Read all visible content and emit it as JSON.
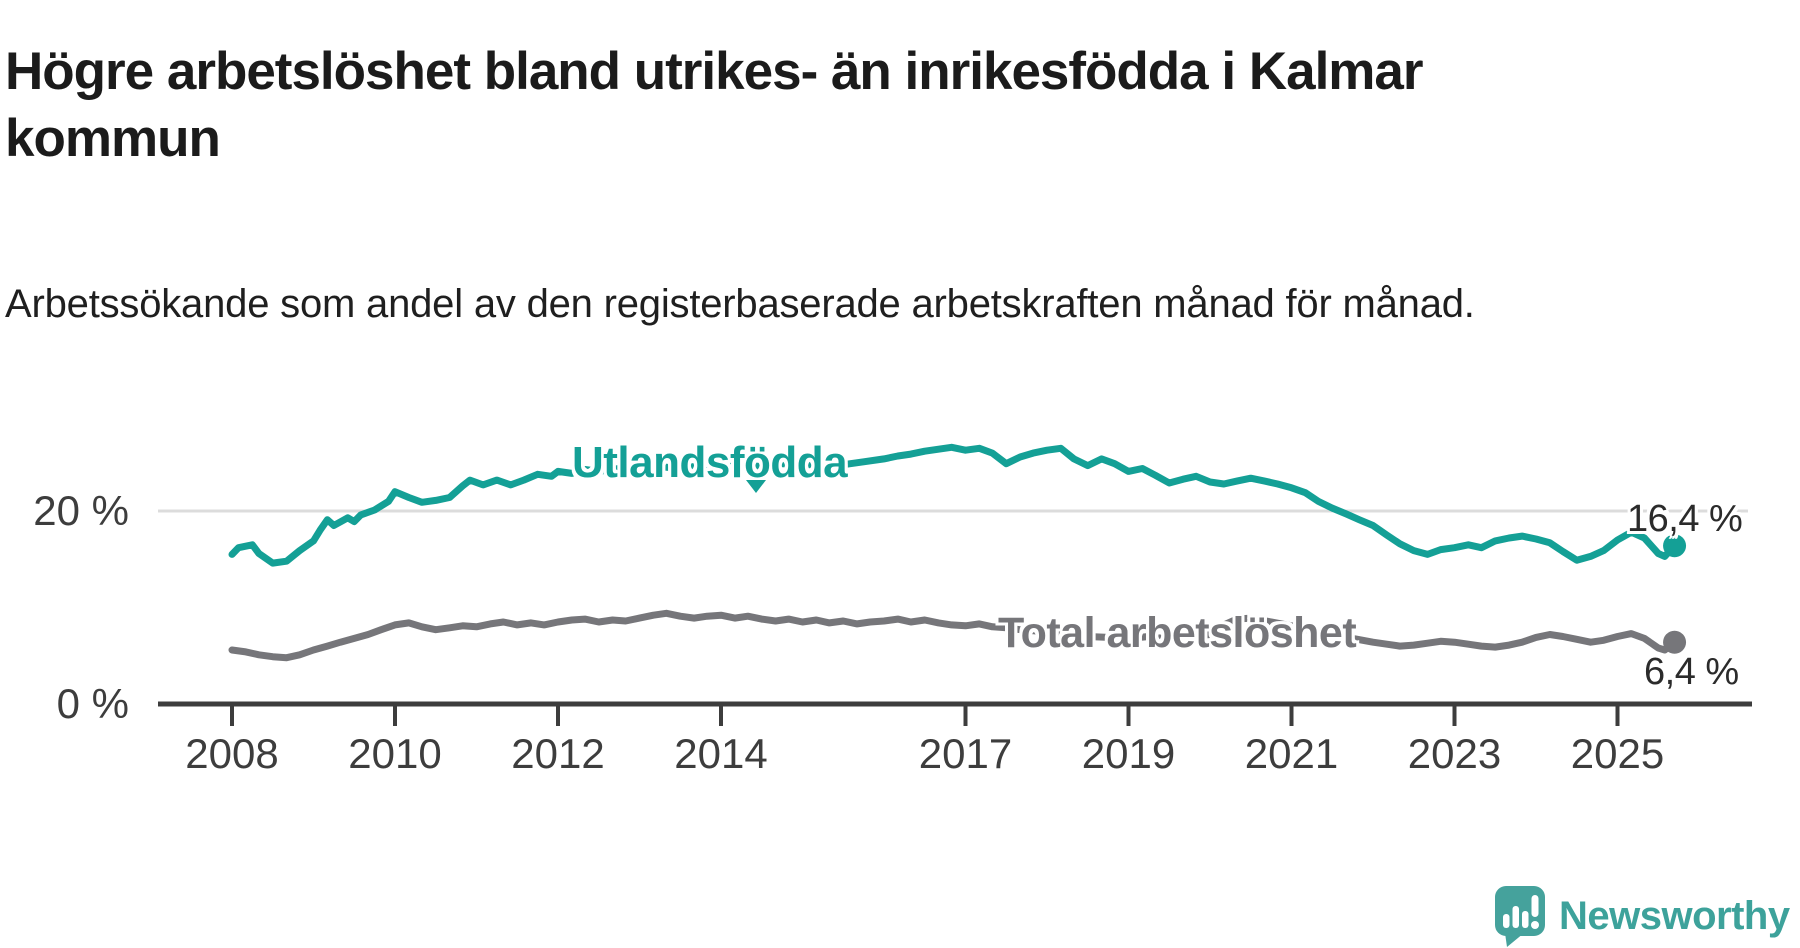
{
  "chart_data": {
    "type": "line",
    "title": "Högre arbetslöshet bland utrikes- än inrikesfödda i Kalmar kommun",
    "subtitle": "Arbetssökande som andel av den registerbaserade arbetskraften månad för månad.",
    "xlabel": "",
    "ylabel": "",
    "units": "%",
    "grid": "horizontal-only",
    "legend_position": "inline-labels",
    "xlim": [
      2007.1,
      2026.6
    ],
    "ylim": [
      0,
      29
    ],
    "x_axis": {
      "tick_years": [
        2008,
        2010,
        2012,
        2014,
        2017,
        2019,
        2021,
        2023,
        2025
      ]
    },
    "y_axis": {
      "ticks": [
        {
          "value": 0,
          "label": "0 %"
        },
        {
          "value": 20,
          "label": "20 %"
        }
      ],
      "gridline_values": [
        20
      ]
    },
    "colors": {
      "axis": "#3d3d3d",
      "gridline": "#dcdcdc",
      "value_label": "#2b2b2b"
    },
    "series": [
      {
        "name": "Utlandsfödda",
        "color": "#14a096",
        "end_value": 16.4,
        "end_label": "16,4 %",
        "points": [
          [
            2008.0,
            15.5
          ],
          [
            2008.08,
            16.2
          ],
          [
            2008.25,
            16.5
          ],
          [
            2008.33,
            15.6
          ],
          [
            2008.5,
            14.6
          ],
          [
            2008.67,
            14.8
          ],
          [
            2008.83,
            15.9
          ],
          [
            2009.0,
            16.9
          ],
          [
            2009.08,
            18.0
          ],
          [
            2009.17,
            19.1
          ],
          [
            2009.25,
            18.5
          ],
          [
            2009.42,
            19.3
          ],
          [
            2009.5,
            18.9
          ],
          [
            2009.58,
            19.6
          ],
          [
            2009.75,
            20.1
          ],
          [
            2009.92,
            21.0
          ],
          [
            2010.0,
            22.0
          ],
          [
            2010.17,
            21.4
          ],
          [
            2010.33,
            20.9
          ],
          [
            2010.5,
            21.1
          ],
          [
            2010.67,
            21.4
          ],
          [
            2010.83,
            22.6
          ],
          [
            2010.92,
            23.2
          ],
          [
            2011.08,
            22.7
          ],
          [
            2011.25,
            23.2
          ],
          [
            2011.42,
            22.7
          ],
          [
            2011.58,
            23.2
          ],
          [
            2011.75,
            23.8
          ],
          [
            2011.92,
            23.6
          ],
          [
            2012.0,
            24.1
          ],
          [
            2012.17,
            23.9
          ],
          [
            2012.33,
            24.3
          ],
          [
            2012.5,
            24.1
          ],
          [
            2012.75,
            24.4
          ],
          [
            2013.0,
            24.2
          ],
          [
            2013.25,
            24.6
          ],
          [
            2013.5,
            24.4
          ],
          [
            2013.75,
            24.7
          ],
          [
            2014.0,
            24.5
          ],
          [
            2014.25,
            24.8
          ],
          [
            2014.5,
            24.6
          ],
          [
            2014.75,
            24.9
          ],
          [
            2015.0,
            24.7
          ],
          [
            2015.25,
            25.0
          ],
          [
            2015.5,
            24.8
          ],
          [
            2015.75,
            25.1
          ],
          [
            2016.0,
            25.4
          ],
          [
            2016.17,
            25.7
          ],
          [
            2016.33,
            25.9
          ],
          [
            2016.5,
            26.2
          ],
          [
            2016.67,
            26.4
          ],
          [
            2016.83,
            26.6
          ],
          [
            2017.0,
            26.3
          ],
          [
            2017.17,
            26.5
          ],
          [
            2017.33,
            26.0
          ],
          [
            2017.5,
            24.9
          ],
          [
            2017.67,
            25.6
          ],
          [
            2017.83,
            26.0
          ],
          [
            2018.0,
            26.3
          ],
          [
            2018.17,
            26.5
          ],
          [
            2018.33,
            25.4
          ],
          [
            2018.5,
            24.7
          ],
          [
            2018.67,
            25.4
          ],
          [
            2018.83,
            24.9
          ],
          [
            2019.0,
            24.1
          ],
          [
            2019.17,
            24.4
          ],
          [
            2019.33,
            23.7
          ],
          [
            2019.5,
            22.9
          ],
          [
            2019.67,
            23.3
          ],
          [
            2019.83,
            23.6
          ],
          [
            2020.0,
            23.0
          ],
          [
            2020.17,
            22.8
          ],
          [
            2020.33,
            23.1
          ],
          [
            2020.5,
            23.4
          ],
          [
            2020.67,
            23.1
          ],
          [
            2020.83,
            22.8
          ],
          [
            2021.0,
            22.4
          ],
          [
            2021.17,
            21.9
          ],
          [
            2021.33,
            21.0
          ],
          [
            2021.5,
            20.3
          ],
          [
            2021.67,
            19.7
          ],
          [
            2021.83,
            19.1
          ],
          [
            2022.0,
            18.5
          ],
          [
            2022.17,
            17.5
          ],
          [
            2022.33,
            16.6
          ],
          [
            2022.5,
            15.9
          ],
          [
            2022.67,
            15.5
          ],
          [
            2022.83,
            16.0
          ],
          [
            2023.0,
            16.2
          ],
          [
            2023.17,
            16.5
          ],
          [
            2023.33,
            16.2
          ],
          [
            2023.5,
            16.9
          ],
          [
            2023.67,
            17.2
          ],
          [
            2023.83,
            17.4
          ],
          [
            2024.0,
            17.1
          ],
          [
            2024.17,
            16.7
          ],
          [
            2024.33,
            15.8
          ],
          [
            2024.5,
            14.9
          ],
          [
            2024.67,
            15.3
          ],
          [
            2024.83,
            15.9
          ],
          [
            2025.0,
            17.0
          ],
          [
            2025.17,
            17.8
          ],
          [
            2025.33,
            17.2
          ],
          [
            2025.5,
            15.6
          ],
          [
            2025.58,
            15.3
          ],
          [
            2025.7,
            16.4
          ]
        ]
      },
      {
        "name": "Total arbetslöshet",
        "color": "#76767a",
        "end_value": 6.4,
        "end_label": "6,4 %",
        "points": [
          [
            2008.0,
            5.6
          ],
          [
            2008.17,
            5.4
          ],
          [
            2008.33,
            5.1
          ],
          [
            2008.5,
            4.9
          ],
          [
            2008.67,
            4.8
          ],
          [
            2008.83,
            5.1
          ],
          [
            2009.0,
            5.6
          ],
          [
            2009.17,
            6.0
          ],
          [
            2009.33,
            6.4
          ],
          [
            2009.5,
            6.8
          ],
          [
            2009.67,
            7.2
          ],
          [
            2009.83,
            7.7
          ],
          [
            2010.0,
            8.2
          ],
          [
            2010.17,
            8.4
          ],
          [
            2010.33,
            8.0
          ],
          [
            2010.5,
            7.7
          ],
          [
            2010.67,
            7.9
          ],
          [
            2010.83,
            8.1
          ],
          [
            2011.0,
            8.0
          ],
          [
            2011.17,
            8.3
          ],
          [
            2011.33,
            8.5
          ],
          [
            2011.5,
            8.2
          ],
          [
            2011.67,
            8.4
          ],
          [
            2011.83,
            8.2
          ],
          [
            2012.0,
            8.5
          ],
          [
            2012.17,
            8.7
          ],
          [
            2012.33,
            8.8
          ],
          [
            2012.5,
            8.5
          ],
          [
            2012.67,
            8.7
          ],
          [
            2012.83,
            8.6
          ],
          [
            2013.0,
            8.9
          ],
          [
            2013.17,
            9.2
          ],
          [
            2013.33,
            9.4
          ],
          [
            2013.5,
            9.1
          ],
          [
            2013.67,
            8.9
          ],
          [
            2013.83,
            9.1
          ],
          [
            2014.0,
            9.2
          ],
          [
            2014.17,
            8.9
          ],
          [
            2014.33,
            9.1
          ],
          [
            2014.5,
            8.8
          ],
          [
            2014.67,
            8.6
          ],
          [
            2014.83,
            8.8
          ],
          [
            2015.0,
            8.5
          ],
          [
            2015.17,
            8.7
          ],
          [
            2015.33,
            8.4
          ],
          [
            2015.5,
            8.6
          ],
          [
            2015.67,
            8.3
          ],
          [
            2015.83,
            8.5
          ],
          [
            2016.0,
            8.6
          ],
          [
            2016.17,
            8.8
          ],
          [
            2016.33,
            8.5
          ],
          [
            2016.5,
            8.7
          ],
          [
            2016.67,
            8.4
          ],
          [
            2016.83,
            8.2
          ],
          [
            2017.0,
            8.1
          ],
          [
            2017.17,
            8.3
          ],
          [
            2017.33,
            8.0
          ],
          [
            2017.5,
            7.9
          ],
          [
            2017.67,
            7.7
          ],
          [
            2017.83,
            7.6
          ],
          [
            2018.0,
            7.4
          ],
          [
            2018.25,
            7.2
          ],
          [
            2018.5,
            7.0
          ],
          [
            2018.75,
            6.9
          ],
          [
            2019.0,
            6.8
          ],
          [
            2019.25,
            7.0
          ],
          [
            2019.5,
            6.7
          ],
          [
            2019.75,
            6.9
          ],
          [
            2020.0,
            7.2
          ],
          [
            2020.17,
            8.2
          ],
          [
            2020.33,
            8.8
          ],
          [
            2020.5,
            8.9
          ],
          [
            2020.75,
            8.5
          ],
          [
            2021.0,
            8.1
          ],
          [
            2021.25,
            7.6
          ],
          [
            2021.5,
            7.2
          ],
          [
            2021.75,
            6.8
          ],
          [
            2022.0,
            6.4
          ],
          [
            2022.17,
            6.2
          ],
          [
            2022.33,
            6.0
          ],
          [
            2022.5,
            6.1
          ],
          [
            2022.67,
            6.3
          ],
          [
            2022.83,
            6.5
          ],
          [
            2023.0,
            6.4
          ],
          [
            2023.17,
            6.2
          ],
          [
            2023.33,
            6.0
          ],
          [
            2023.5,
            5.9
          ],
          [
            2023.67,
            6.1
          ],
          [
            2023.83,
            6.4
          ],
          [
            2024.0,
            6.9
          ],
          [
            2024.17,
            7.2
          ],
          [
            2024.33,
            7.0
          ],
          [
            2024.5,
            6.7
          ],
          [
            2024.67,
            6.4
          ],
          [
            2024.83,
            6.6
          ],
          [
            2025.0,
            7.0
          ],
          [
            2025.17,
            7.3
          ],
          [
            2025.33,
            6.8
          ],
          [
            2025.5,
            5.8
          ],
          [
            2025.58,
            5.6
          ],
          [
            2025.7,
            6.4
          ]
        ]
      }
    ]
  },
  "footer": {
    "brand": "Newsworthy"
  }
}
